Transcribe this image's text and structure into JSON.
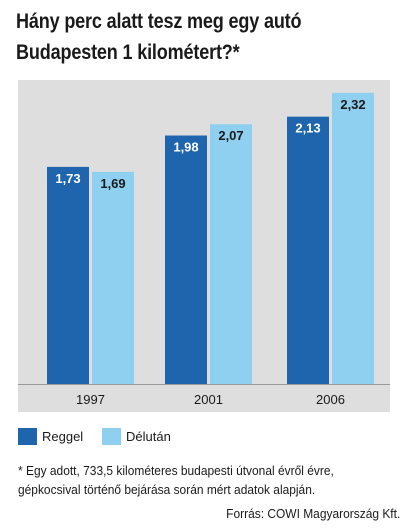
{
  "title_line1": "Hány perc alatt tesz meg egy autó",
  "title_line2": "Budapesten 1 kilométert?*",
  "colors": {
    "reggel": "#1e65ad",
    "delutan": "#8fcfef",
    "panel": "#dddedd"
  },
  "chart_data": {
    "type": "bar",
    "title": "Hány perc alatt tesz meg egy autó Budapesten 1 kilométert?*",
    "categories": [
      "1997",
      "2001",
      "2006"
    ],
    "series": [
      {
        "name": "Reggel",
        "values": [
          1.73,
          1.98,
          2.13
        ],
        "labels": [
          "1,73",
          "1,98",
          "2,13"
        ]
      },
      {
        "name": "Délután",
        "values": [
          1.69,
          2.07,
          2.32
        ],
        "labels": [
          "1,69",
          "2,07",
          "2,32"
        ]
      }
    ],
    "ylim": [
      0,
      2.4
    ],
    "grid": false,
    "legend": "bottom-left"
  },
  "legend": {
    "reggel": "Reggel",
    "delutan": "Délután"
  },
  "note": "* Egy adott, 733,5 kilométeres budapesti útvonal évről évre, gépkocsival történő bejárása során mért adatok alapján.",
  "source": "Forrás: COWI Magyarország Kft."
}
